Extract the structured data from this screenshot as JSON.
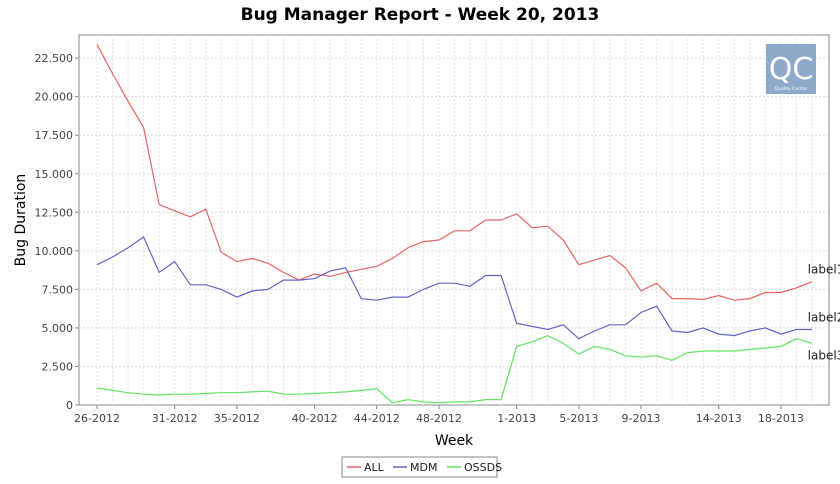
{
  "chart_data": {
    "type": "line",
    "title": "Bug Manager Report - Week 20, 2013",
    "xlabel": "Week",
    "ylabel": "Bug Duration",
    "ylim": [
      0,
      24000
    ],
    "y_ticks": [
      0,
      2500,
      5000,
      7500,
      10000,
      12500,
      15000,
      17500,
      20000,
      22500
    ],
    "y_tick_labels": [
      "0",
      "2.500",
      "5.000",
      "7.500",
      "10.000",
      "12.500",
      "15.000",
      "17.500",
      "20.000",
      "22.500"
    ],
    "x_tick_labels": [
      "26-2012",
      "31-2012",
      "35-2012",
      "40-2012",
      "44-2012",
      "48-2012",
      "1-2013",
      "5-2013",
      "9-2013",
      "14-2013",
      "18-2013"
    ],
    "x_tick_indices": [
      0,
      5,
      9,
      14,
      18,
      22,
      27,
      31,
      35,
      40,
      44
    ],
    "grid": true,
    "legend_placement": "bottom",
    "logo": {
      "text": "QC",
      "caption": "Quality Center",
      "bg": "#8ea9c9"
    },
    "series": [
      {
        "name": "ALL",
        "color": "#e46464",
        "end_label": "label1",
        "values": [
          23400,
          21500,
          19700,
          18000,
          13000,
          12600,
          12200,
          12700,
          9900,
          9300,
          9500,
          9200,
          8600,
          8100,
          8500,
          8350,
          8600,
          8800,
          9000,
          9500,
          10200,
          10600,
          10700,
          11300,
          11300,
          12000,
          12000,
          12400,
          11500,
          11600,
          10700,
          9100,
          9400,
          9700,
          8900,
          7400,
          7900,
          6900,
          6900,
          6850,
          7100,
          6800,
          6900,
          7300,
          7300,
          7600,
          8000
        ]
      },
      {
        "name": "MDM",
        "color": "#6464c8",
        "end_label": "label2",
        "values": [
          9100,
          9600,
          10200,
          10900,
          8600,
          9300,
          7800,
          7800,
          7500,
          7000,
          7400,
          7500,
          8100,
          8100,
          8200,
          8700,
          8900,
          6900,
          6800,
          7000,
          7000,
          7500,
          7900,
          7900,
          7700,
          8400,
          8400,
          5300,
          5100,
          4900,
          5200,
          4300,
          4800,
          5200,
          5200,
          6000,
          6400,
          4800,
          4700,
          5000,
          4600,
          4500,
          4800,
          5000,
          4600,
          4900,
          4900
        ]
      },
      {
        "name": "OSSDS",
        "color": "#64e464",
        "end_label": "label3",
        "values": [
          1100,
          950,
          800,
          700,
          650,
          700,
          700,
          750,
          800,
          800,
          850,
          900,
          700,
          700,
          750,
          800,
          850,
          950,
          1050,
          150,
          350,
          200,
          150,
          200,
          200,
          350,
          350,
          3800,
          4100,
          4500,
          4000,
          3300,
          3800,
          3600,
          3200,
          3100,
          3200,
          2900,
          3400,
          3500,
          3500,
          3500,
          3600,
          3700,
          3800,
          4300,
          4000
        ]
      }
    ]
  }
}
